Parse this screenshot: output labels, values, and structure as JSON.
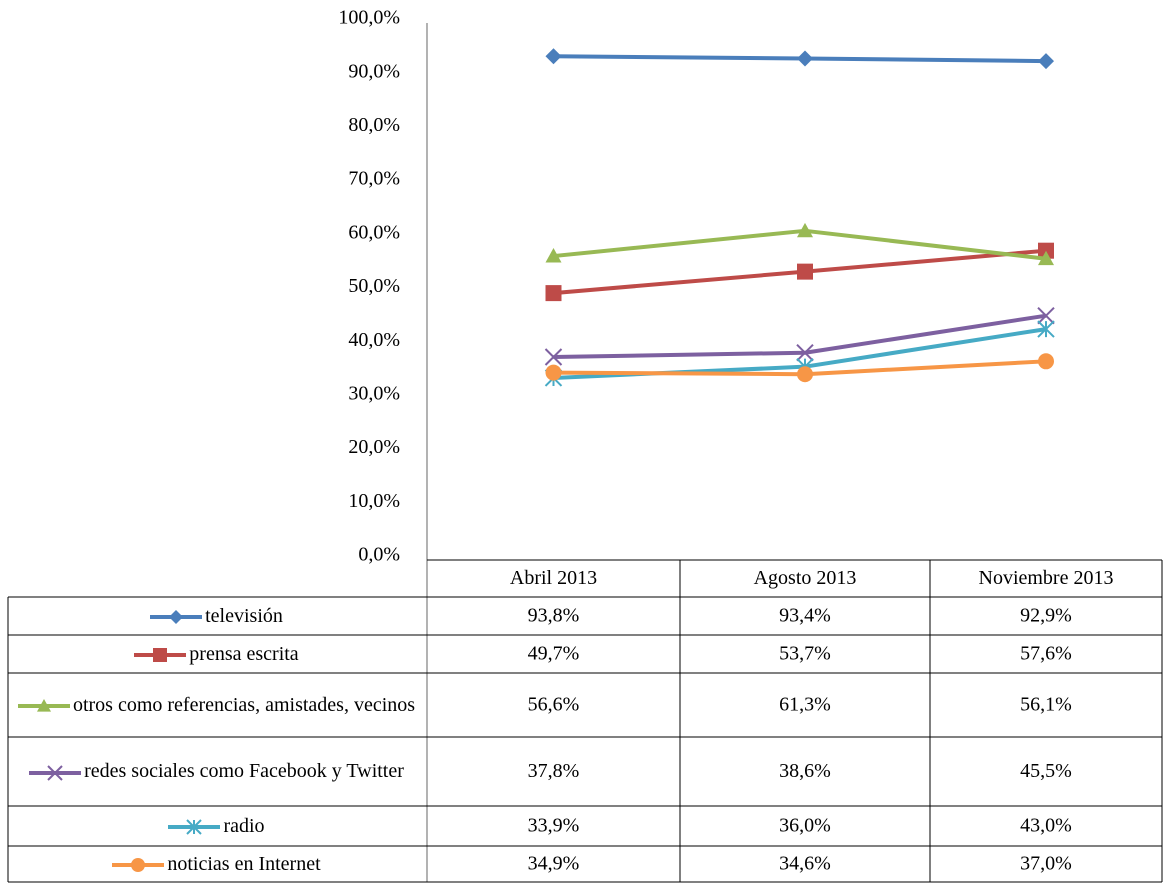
{
  "chart_data": {
    "type": "line",
    "categories": [
      "Abril 2013",
      "Agosto 2013",
      "Noviembre 2013"
    ],
    "ylim": [
      0,
      100
    ],
    "yticks": [
      {
        "value": 0,
        "label": "0,0%"
      },
      {
        "value": 10,
        "label": "10,0%"
      },
      {
        "value": 20,
        "label": "20,0%"
      },
      {
        "value": 30,
        "label": "30,0%"
      },
      {
        "value": 40,
        "label": "40,0%"
      },
      {
        "value": 50,
        "label": "50,0%"
      },
      {
        "value": 60,
        "label": "60,0%"
      },
      {
        "value": 70,
        "label": "70,0%"
      },
      {
        "value": 80,
        "label": "80,0%"
      },
      {
        "value": 90,
        "label": "90,0%"
      },
      {
        "value": 100,
        "label": "100,0%"
      }
    ],
    "grid": false,
    "series": [
      {
        "name": "televisión",
        "color": "#4a7ebb",
        "marker": "diamond",
        "values": [
          93.8,
          93.4,
          92.9
        ],
        "value_labels": [
          "93,8%",
          "93,4%",
          "92,9%"
        ]
      },
      {
        "name": "prensa escrita",
        "color": "#be4b48",
        "marker": "square",
        "values": [
          49.7,
          53.7,
          57.6
        ],
        "value_labels": [
          "49,7%",
          "53,7%",
          "57,6%"
        ]
      },
      {
        "name": "otros como referencias, amistades, vecinos",
        "color": "#98b954",
        "marker": "triangle",
        "values": [
          56.6,
          61.3,
          56.1
        ],
        "value_labels": [
          "56,6%",
          "61,3%",
          "56,1%"
        ]
      },
      {
        "name": "redes sociales como Facebook y Twitter",
        "color": "#7d60a0",
        "marker": "x",
        "values": [
          37.8,
          38.6,
          45.5
        ],
        "value_labels": [
          "37,8%",
          "38,6%",
          "45,5%"
        ]
      },
      {
        "name": "radio",
        "color": "#46aac5",
        "marker": "asterisk",
        "values": [
          33.9,
          36.0,
          43.0
        ],
        "value_labels": [
          "33,9%",
          "36,0%",
          "43,0%"
        ]
      },
      {
        "name": "noticias en Internet",
        "color": "#f79646",
        "marker": "circle",
        "values": [
          34.9,
          34.6,
          37.0
        ],
        "value_labels": [
          "34,9%",
          "34,6%",
          "37,0%"
        ]
      }
    ]
  }
}
